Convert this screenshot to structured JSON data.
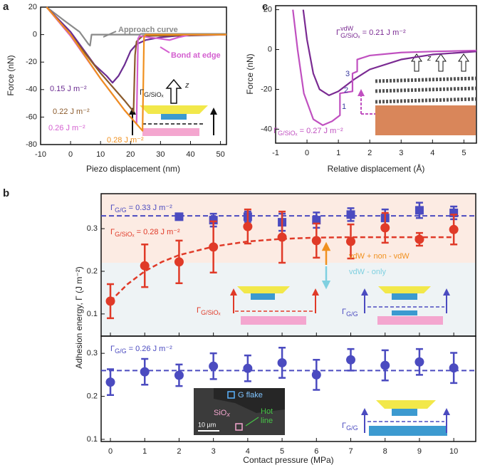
{
  "chart_data": [
    {
      "type": "line",
      "label": "a",
      "xlabel": "Piezo displacement (nm)",
      "ylabel": "Force (nN)",
      "xlim": [
        -10,
        52
      ],
      "xticks": [
        -10,
        0,
        10,
        20,
        30,
        40,
        50
      ],
      "ylim": [
        -80,
        20
      ],
      "yticks": [
        -80,
        -60,
        -40,
        -20,
        0,
        20
      ],
      "series": [
        {
          "color": "#8a8a8a",
          "x": [
            -8,
            -2,
            3,
            6,
            6.5,
            7,
            23,
            23.5,
            52
          ],
          "values": [
            20,
            10,
            2,
            -7,
            -8,
            0,
            0,
            0.5,
            0.5
          ]
        },
        {
          "color": "#6b2c91",
          "x": [
            -8,
            0,
            8,
            12,
            14,
            16,
            18,
            20,
            22,
            25,
            30,
            35,
            52
          ],
          "values": [
            20,
            2,
            -22,
            -30,
            -35,
            -30,
            -22,
            -12,
            -7,
            -4,
            -2,
            -1,
            0
          ]
        },
        {
          "color": "#8b5a2b",
          "x": [
            -8,
            0,
            10,
            18,
            21,
            21.5,
            22,
            24,
            52
          ],
          "values": [
            20,
            0,
            -28,
            -48,
            -56,
            -15,
            -5,
            -1,
            0
          ]
        },
        {
          "color": "#d45fd0",
          "x": [
            -8,
            0,
            10,
            18,
            22,
            22.5,
            23,
            26,
            30,
            33,
            36,
            40,
            52
          ],
          "values": [
            20,
            -1,
            -32,
            -55,
            -65,
            -3,
            -1,
            -2,
            -3,
            -4,
            -2,
            0,
            0
          ]
        },
        {
          "color": "#f0901e",
          "x": [
            -8,
            0,
            10,
            18,
            24,
            24.5,
            25,
            52
          ],
          "values": [
            20,
            0,
            -32,
            -55,
            -70,
            -2,
            0,
            0
          ]
        }
      ],
      "annotations": {
        "approach": "Approach curve",
        "bond": "Bond at edge",
        "e1": "0.15 J m⁻²",
        "e2": "0.22 J m⁻²",
        "e3": "0.26 J m⁻²",
        "e4": "0.28 J m⁻²",
        "gamma": {
          "sym": "Γ",
          "sub": "G/SiOₓ"
        },
        "z": "z"
      }
    },
    {
      "type": "line",
      "label": "c",
      "xlabel": "Relative displacement (Å)",
      "ylabel": "Force (nN)",
      "xlim": [
        -1,
        5.4
      ],
      "xticks": [
        -1,
        0,
        1,
        2,
        3,
        4,
        5
      ],
      "ylim": [
        -47,
        22
      ],
      "yticks": [
        -40,
        -20,
        0,
        20
      ],
      "series": [
        {
          "color": "#7a2a92",
          "x": [
            -0.12,
            0,
            0.2,
            0.4,
            0.7,
            1,
            1.5,
            2,
            3,
            4,
            5.4
          ],
          "values": [
            20,
            5,
            -12,
            -20,
            -23,
            -21,
            -15,
            -10,
            -5,
            -2.5,
            -1
          ]
        },
        {
          "color": "#c050c0",
          "x": [
            -0.45,
            -0.3,
            -0.1,
            0.2,
            0.5,
            0.8,
            1.05,
            1.05,
            1.45,
            1.45,
            1.6,
            1.6,
            2,
            3,
            4,
            5.4
          ],
          "values": [
            20,
            0,
            -22,
            -35,
            -38,
            -36,
            -33,
            -22,
            -21,
            -12,
            -11,
            -5,
            -3,
            -1.5,
            -1,
            -0.5
          ]
        }
      ],
      "annotations": {
        "vdw": {
          "sym": "Γ",
          "sup": "vdW",
          "sub": "G/SiOₓ",
          "rest": " = 0.21 J m⁻²"
        },
        "total": {
          "sym": "Γ",
          "sub": "G/SiOₓ",
          "rest": " = 0.27 J m⁻²"
        },
        "s1": "1",
        "s2": "2",
        "s3": "3",
        "z": "z"
      }
    },
    {
      "type": "scatter",
      "label": "b",
      "ylabel": "Adhesion energy, Γ (J m⁻²)",
      "x": [
        0,
        1,
        2,
        3,
        4,
        5,
        6,
        7,
        8,
        9,
        10
      ],
      "xlim": [
        -0.27,
        10.64
      ],
      "ylim": [
        0.048,
        0.382
      ],
      "yticks": [
        0.1,
        0.2,
        0.3
      ],
      "band_split": 0.22,
      "band_colors": [
        "#eef3f5",
        "#fcebe3"
      ],
      "series": [
        {
          "color": "#4b4bc0",
          "marker": "square",
          "values": [
            null,
            null,
            0.328,
            0.32,
            0.328,
            0.315,
            0.32,
            0.333,
            0.325,
            0.343,
            0.337
          ],
          "errors": [
            null,
            null,
            null,
            0.015,
            0.012,
            0.02,
            0.018,
            0.015,
            0.02,
            0.018,
            0.015
          ]
        },
        {
          "color": "#e03a28",
          "marker": "circle",
          "values": [
            0.13,
            0.213,
            0.222,
            0.257,
            0.305,
            0.28,
            0.272,
            0.27,
            0.302,
            0.275,
            0.298
          ],
          "errors": [
            0.04,
            0.05,
            0.05,
            0.06,
            0.04,
            0.06,
            0.04,
            0.04,
            0.035,
            0.015,
            0.035
          ]
        }
      ],
      "fit": {
        "color": "#e03a28",
        "x": [
          0,
          0.5,
          1,
          1.5,
          2,
          3,
          4,
          5,
          6,
          7,
          8,
          9,
          10
        ],
        "values": [
          0.13,
          0.17,
          0.2,
          0.222,
          0.238,
          0.258,
          0.27,
          0.276,
          0.279,
          0.28,
          0.28,
          0.28,
          0.28
        ]
      },
      "hline": {
        "value": 0.33,
        "color": "#4b4bc0"
      },
      "annotations": {
        "gg": {
          "sym": "Γ",
          "sub": "G/G",
          "rest": " = 0.33 J m⁻²"
        },
        "gs": {
          "sym": "Γ",
          "sub": "G/SiOₓ",
          "rest": " = 0.28 J m⁻²"
        },
        "both": "vdW + non - vdW",
        "only": "vdW - only",
        "sch1": {
          "sym": "Γ",
          "sub": "G/SiOₓ"
        },
        "sch2": {
          "sym": "Γ",
          "sub": "G/G"
        }
      }
    },
    {
      "type": "scatter",
      "xlabel": "Contact pressure (MPa)",
      "x": [
        0,
        1,
        2,
        3,
        4,
        5,
        6,
        7,
        8,
        9,
        10
      ],
      "xlim": [
        -0.27,
        10.64
      ],
      "xticks": [
        0,
        1,
        2,
        3,
        4,
        5,
        6,
        7,
        8,
        9,
        10
      ],
      "ylim": [
        0.095,
        0.34
      ],
      "yticks": [
        0.1,
        0.2,
        0.3
      ],
      "series": [
        {
          "color": "#4b4bc0",
          "marker": "circle",
          "values": [
            0.233,
            0.257,
            0.249,
            0.27,
            0.265,
            0.278,
            0.25,
            0.285,
            0.272,
            0.28,
            0.266
          ],
          "errors": [
            0.03,
            0.03,
            0.025,
            0.03,
            0.03,
            0.035,
            0.035,
            0.025,
            0.035,
            0.03,
            0.035
          ]
        }
      ],
      "hline": {
        "value": 0.26,
        "color": "#4b4bc0"
      },
      "annotations": {
        "gg": {
          "sym": "Γ",
          "sub": "G/G",
          "rest": " = 0.26 J m⁻²"
        },
        "flake": "G flake",
        "sio": {
          "base": "SiO",
          "sub": "x"
        },
        "hot1": "Hot",
        "hot2": "line",
        "scale": "10 µm",
        "sch": {
          "sym": "Γ",
          "sub": "G/G"
        }
      }
    }
  ]
}
